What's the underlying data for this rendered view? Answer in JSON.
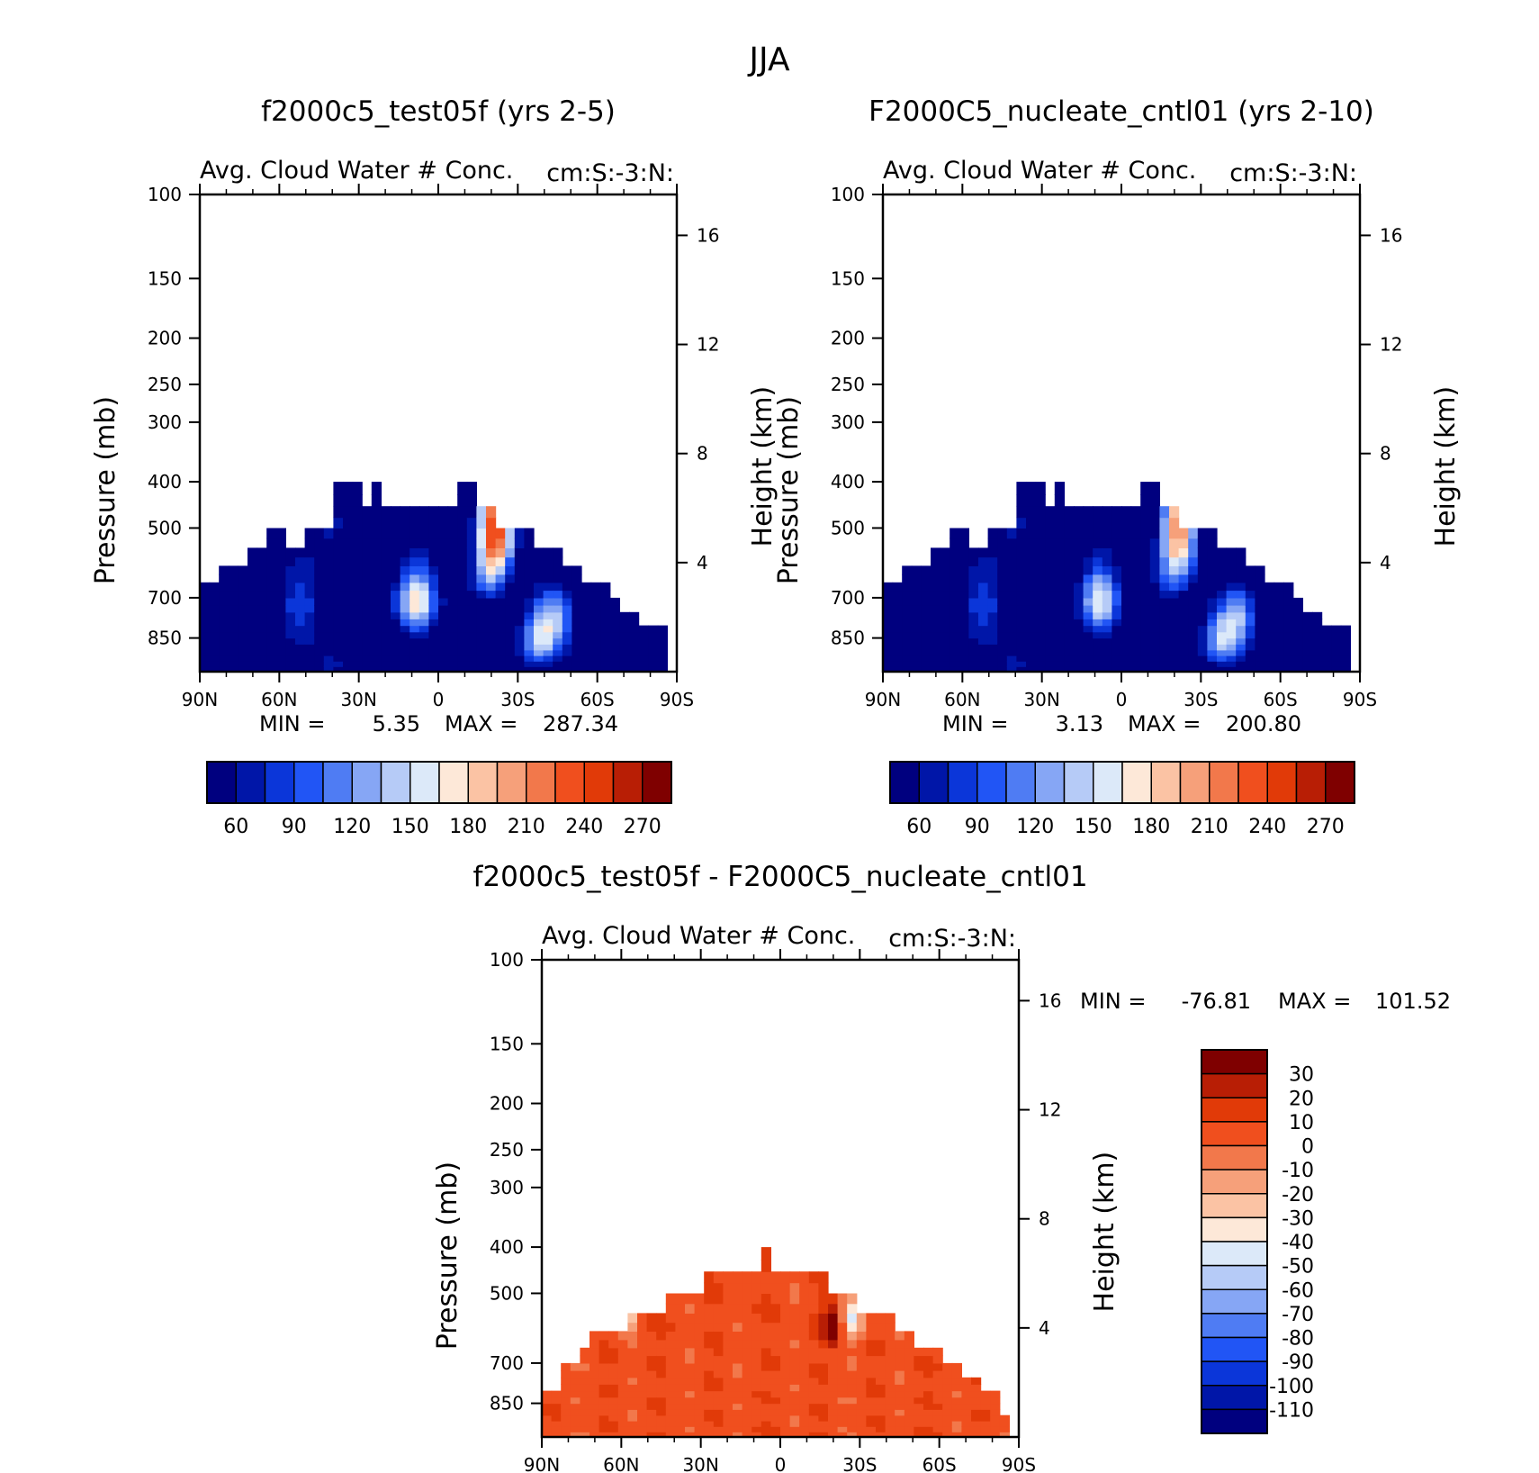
{
  "figure": {
    "title": "JJA"
  },
  "chart_data": [
    {
      "type": "heatmap",
      "title": "f2000c5_test05f (yrs 2-5)",
      "subtitle_left": "Avg. Cloud Water # Conc.",
      "subtitle_right": "cm:S:-3:N:",
      "ylabel": "Pressure (mb)",
      "ylabel_right": "Height (km)",
      "x_ticks": [
        "90N",
        "60N",
        "30N",
        "0",
        "30S",
        "60S",
        "90S"
      ],
      "y_ticks": [
        "100",
        "150",
        "200",
        "250",
        "300",
        "400",
        "500",
        "700",
        "850"
      ],
      "y_right_ticks": [
        "16",
        "12",
        "8",
        "4"
      ],
      "min_label": "MIN =",
      "min_value": "5.35",
      "max_label": "MAX =",
      "max_value": "287.34",
      "colorbar_ticks": [
        "60",
        "90",
        "120",
        "150",
        "180",
        "210",
        "240",
        "270"
      ],
      "colorbar_colors": [
        "#00007f",
        "#0016a8",
        "#0b36d9",
        "#2155f5",
        "#4f7cf3",
        "#86a6f5",
        "#b6cbf7",
        "#dce9f9",
        "#fde8d8",
        "#fbc3a4",
        "#f6a07a",
        "#f2784b",
        "#f04f1e",
        "#e13a08",
        "#b81e05",
        "#7f0000"
      ],
      "ylim_mb": [
        100,
        1000
      ],
      "cloud_top_mb": [
        650,
        650,
        600,
        600,
        600,
        550,
        550,
        500,
        500,
        550,
        550,
        500,
        500,
        500,
        400,
        400,
        400,
        450,
        400,
        450,
        450,
        450,
        450,
        450,
        450,
        450,
        450,
        400,
        400,
        450,
        450,
        500,
        500,
        500,
        500,
        550,
        550,
        550,
        600,
        600,
        650,
        650,
        650,
        700,
        750,
        750,
        800,
        800,
        800,
        1000
      ],
      "hotspots": [
        {
          "lat": 8,
          "p": 710,
          "peak": 200
        },
        {
          "lat": -38,
          "p": 870,
          "peak": 150
        },
        {
          "lat": -45,
          "p": 760,
          "peak": 125
        },
        {
          "lat": -20,
          "p": 600,
          "peak": 140
        },
        {
          "lat": -22,
          "p": 470,
          "peak": 200
        }
      ]
    },
    {
      "type": "heatmap",
      "title": "F2000C5_nucleate_cntl01 (yrs 2-10)",
      "subtitle_left": "Avg. Cloud Water # Conc.",
      "subtitle_right": "cm:S:-3:N:",
      "ylabel": "Pressure (mb)",
      "ylabel_right": "Height (km)",
      "x_ticks": [
        "90N",
        "60N",
        "30N",
        "0",
        "30S",
        "60S",
        "90S"
      ],
      "y_ticks": [
        "100",
        "150",
        "200",
        "250",
        "300",
        "400",
        "500",
        "700",
        "850"
      ],
      "y_right_ticks": [
        "16",
        "12",
        "8",
        "4"
      ],
      "min_label": "MIN =",
      "min_value": "3.13",
      "max_label": "MAX =",
      "max_value": "200.80",
      "colorbar_ticks": [
        "60",
        "90",
        "120",
        "150",
        "180",
        "210",
        "240",
        "270"
      ],
      "colorbar_colors": [
        "#00007f",
        "#0016a8",
        "#0b36d9",
        "#2155f5",
        "#4f7cf3",
        "#86a6f5",
        "#b6cbf7",
        "#dce9f9",
        "#fde8d8",
        "#fbc3a4",
        "#f6a07a",
        "#f2784b",
        "#f04f1e",
        "#e13a08",
        "#b81e05",
        "#7f0000"
      ],
      "ylim_mb": [
        100,
        1000
      ],
      "cloud_top_mb": [
        650,
        650,
        600,
        600,
        600,
        550,
        550,
        500,
        500,
        550,
        550,
        500,
        500,
        500,
        400,
        400,
        400,
        450,
        400,
        450,
        450,
        450,
        450,
        450,
        450,
        450,
        450,
        400,
        400,
        450,
        450,
        500,
        500,
        500,
        500,
        550,
        550,
        550,
        600,
        600,
        650,
        650,
        650,
        700,
        750,
        750,
        800,
        800,
        800,
        1000
      ],
      "hotspots": [
        {
          "lat": 8,
          "p": 710,
          "peak": 185
        },
        {
          "lat": -38,
          "p": 870,
          "peak": 145
        },
        {
          "lat": -45,
          "p": 760,
          "peak": 120
        },
        {
          "lat": -20,
          "p": 600,
          "peak": 120
        },
        {
          "lat": -22,
          "p": 470,
          "peak": 170
        }
      ]
    },
    {
      "type": "heatmap",
      "title": "f2000c5_test05f - F2000C5_nucleate_cntl01",
      "subtitle_left": "Avg. Cloud Water # Conc.",
      "subtitle_right": "cm:S:-3:N:",
      "ylabel": "Pressure (mb)",
      "ylabel_right": "Height (km)",
      "x_ticks": [
        "90N",
        "60N",
        "30N",
        "0",
        "30S",
        "60S",
        "90S"
      ],
      "y_ticks": [
        "100",
        "150",
        "200",
        "250",
        "300",
        "400",
        "500",
        "700",
        "850"
      ],
      "y_right_ticks": [
        "16",
        "12",
        "8",
        "4"
      ],
      "min_label": "MIN =",
      "min_value": "-76.81",
      "max_label": "MAX =",
      "max_value": "101.52",
      "colorbar_ticks": [
        "30",
        "20",
        "10",
        "0",
        "-10",
        "-20",
        "-30",
        "-40",
        "-50",
        "-60",
        "-70",
        "-80",
        "-90",
        "-100",
        "-110"
      ],
      "colorbar_colors": [
        "#7f0000",
        "#b81e05",
        "#e13a08",
        "#f04f1e",
        "#f2784b",
        "#f6a07a",
        "#fbc3a4",
        "#fde8d8",
        "#dce9f9",
        "#b6cbf7",
        "#86a6f5",
        "#4f7cf3",
        "#2155f5",
        "#0b36d9",
        "#0016a8",
        "#00007f"
      ],
      "ylim_mb": [
        100,
        1000
      ],
      "cloud_top_mb": [
        800,
        800,
        700,
        700,
        650,
        600,
        600,
        600,
        600,
        550,
        550,
        550,
        550,
        500,
        500,
        500,
        500,
        450,
        450,
        450,
        450,
        450,
        450,
        400,
        450,
        450,
        450,
        450,
        450,
        450,
        500,
        500,
        500,
        550,
        550,
        550,
        550,
        600,
        600,
        650,
        650,
        650,
        700,
        700,
        750,
        750,
        800,
        800,
        900,
        1000
      ],
      "hotspots": [
        {
          "lat": -20,
          "p": 580,
          "peak": 35
        },
        {
          "lat": -27,
          "p": 560,
          "peak": -45
        },
        {
          "lat": 58,
          "p": 530,
          "peak": -50
        }
      ]
    }
  ]
}
